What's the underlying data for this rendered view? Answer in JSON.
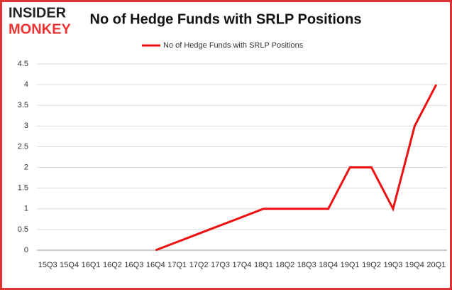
{
  "logo": {
    "top": "INSIDER",
    "bottom": "MONKEY"
  },
  "chart_data": {
    "type": "line",
    "title": "No of Hedge Funds with SRLP Positions",
    "categories": [
      "15Q3",
      "15Q4",
      "16Q1",
      "16Q2",
      "16Q3",
      "16Q4",
      "17Q1",
      "17Q2",
      "17Q3",
      "17Q4",
      "18Q1",
      "18Q2",
      "18Q3",
      "18Q4",
      "19Q1",
      "19Q2",
      "19Q3",
      "19Q4",
      "20Q1"
    ],
    "series": [
      {
        "name": "No of Hedge Funds with SRLP Positions",
        "color": "#ee1111",
        "values": [
          null,
          null,
          null,
          null,
          null,
          0,
          0.2,
          0.4,
          0.6,
          0.8,
          1,
          1,
          1,
          1,
          2,
          2,
          1,
          3,
          4
        ]
      }
    ],
    "ylim": [
      0,
      4.5
    ],
    "yticks": [
      0,
      0.5,
      1,
      1.5,
      2,
      2.5,
      3,
      3.5,
      4,
      4.5
    ],
    "grid": true,
    "legend": "top"
  }
}
